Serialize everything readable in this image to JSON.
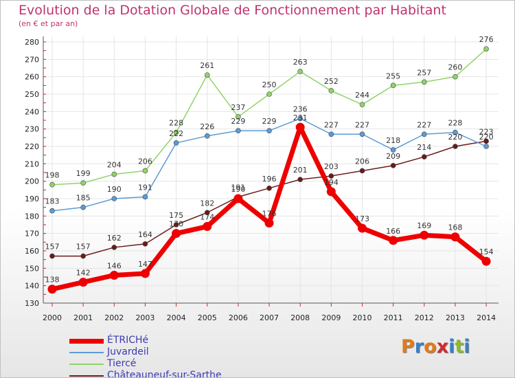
{
  "title": "Evolution de la Dotation Globale de Fonctionnement par Habitant",
  "subtitle": "(en € et par an)",
  "logo_text": "Proxiti",
  "logo_colors": [
    "#e07b1a",
    "#3a7fc4",
    "#e07b1a",
    "#d12b2b",
    "#3a7fc4",
    "#8bbb2b",
    "#3a7fc4"
  ],
  "chart_data": {
    "type": "line",
    "title": "Evolution de la Dotation Globale de Fonctionnement par Habitant",
    "subtitle": "(en € et par an)",
    "xlabel": "",
    "ylabel": "",
    "x": [
      "2000",
      "2001",
      "2002",
      "2003",
      "2004",
      "2005",
      "2006",
      "2007",
      "2008",
      "2009",
      "2010",
      "2011",
      "2012",
      "2013",
      "2014"
    ],
    "ylim": [
      130,
      280
    ],
    "yticks": [
      130,
      140,
      150,
      160,
      170,
      180,
      190,
      200,
      210,
      220,
      230,
      240,
      250,
      260,
      270,
      280
    ],
    "grid": true,
    "legend_position": "bottom-left",
    "series": [
      {
        "name": "Châteauneuf-sur-Sarthe",
        "color": "#6b1a1a",
        "values": [
          157,
          157,
          162,
          164,
          175,
          182,
          191,
          196,
          201,
          203,
          206,
          209,
          214,
          220,
          223
        ],
        "labels": [
          "157",
          "157",
          "162",
          "164",
          "175",
          "182",
          "191",
          "196",
          "201",
          "203",
          "206",
          "209",
          "214",
          "220",
          "223"
        ]
      },
      {
        "name": "Tiercé",
        "color": "#8fd468",
        "values": [
          198,
          199,
          204,
          206,
          228,
          261,
          237,
          250,
          263,
          252,
          244,
          255,
          257,
          260,
          276
        ],
        "labels": [
          "198",
          "199",
          "204",
          "206",
          "228",
          "261",
          "237",
          "250",
          "263",
          "252",
          "244",
          "255",
          "257",
          "260",
          "276"
        ]
      },
      {
        "name": "Juvardeil",
        "color": "#5b9bd5",
        "values": [
          183,
          185,
          190,
          191,
          222,
          226,
          229,
          229,
          236,
          227,
          227,
          218,
          227,
          228,
          220
        ],
        "labels": [
          "183",
          "185",
          "190",
          "191",
          "222",
          "226",
          "229",
          "229",
          "236",
          "227",
          "227",
          "218",
          "227",
          "228",
          "220"
        ]
      },
      {
        "name": "ÉTRICHé",
        "color": "#ee0000",
        "values": [
          138,
          142,
          146,
          147,
          170,
          174,
          190,
          176,
          231,
          194,
          173,
          166,
          169,
          168,
          154
        ],
        "labels": [
          "138",
          "142",
          "146",
          "147",
          "170",
          "174",
          "190",
          "176",
          "231",
          "194",
          "173",
          "166",
          "169",
          "168",
          "154"
        ]
      }
    ],
    "legend": [
      "ÉTRICHé",
      "Juvardeil",
      "Tiercé",
      "Châteauneuf-sur-Sarthe"
    ]
  }
}
